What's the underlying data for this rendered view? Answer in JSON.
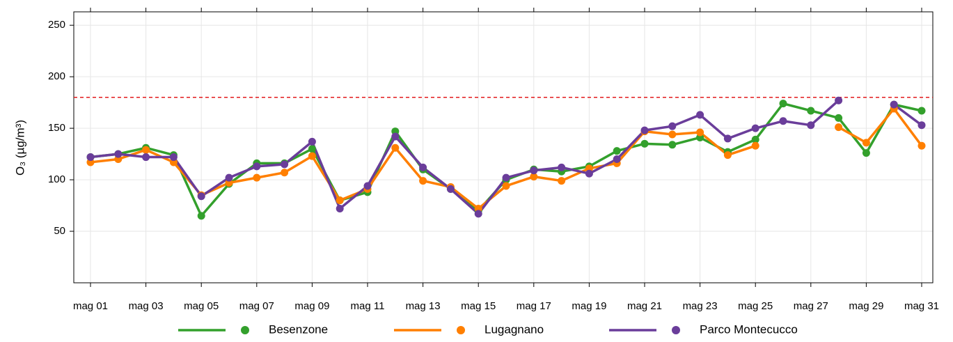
{
  "chart_data": {
    "type": "line",
    "y_label": "O₃ (µg/m³)",
    "categories": [
      "mag 01",
      null,
      "mag 03",
      null,
      "mag 05",
      null,
      "mag 07",
      null,
      "mag 09",
      null,
      "mag 11",
      null,
      "mag 13",
      null,
      "mag 15",
      null,
      "mag 17",
      null,
      "mag 19",
      null,
      "mag 21",
      null,
      "mag 23",
      null,
      "mag 25",
      null,
      "mag 27",
      null,
      "mag 29",
      null,
      "mag 31"
    ],
    "series": [
      {
        "name": "Besenzone",
        "color": "#33a02c",
        "values": [
          122,
          125,
          131,
          124,
          65,
          96,
          116,
          116,
          130,
          80,
          88,
          147,
          110,
          91,
          70,
          100,
          110,
          108,
          113,
          128,
          135,
          134,
          141,
          127,
          139,
          174,
          167,
          160,
          126,
          173,
          167
        ]
      },
      {
        "name": "Lugagnano",
        "color": "#ff7f00",
        "values": [
          117,
          120,
          129,
          117,
          85,
          97,
          102,
          107,
          123,
          80,
          91,
          131,
          99,
          93,
          72,
          94,
          103,
          99,
          111,
          116,
          147,
          144,
          146,
          124,
          133,
          null,
          null,
          151,
          136,
          169,
          133
        ]
      },
      {
        "name": "Parco Montecucco",
        "color": "#6a3d9a",
        "values": [
          122,
          125,
          122,
          122,
          84,
          102,
          113,
          115,
          137,
          72,
          94,
          142,
          112,
          91,
          67,
          102,
          109,
          112,
          106,
          120,
          148,
          152,
          163,
          140,
          150,
          157,
          153,
          177,
          null,
          173,
          153
        ]
      }
    ],
    "ylim": [
      0,
      263
    ],
    "yticks": [
      50,
      100,
      150,
      200,
      250
    ],
    "threshold": {
      "value": 180,
      "color": "#e31a1c"
    },
    "grid": true,
    "legend": "bottom"
  }
}
